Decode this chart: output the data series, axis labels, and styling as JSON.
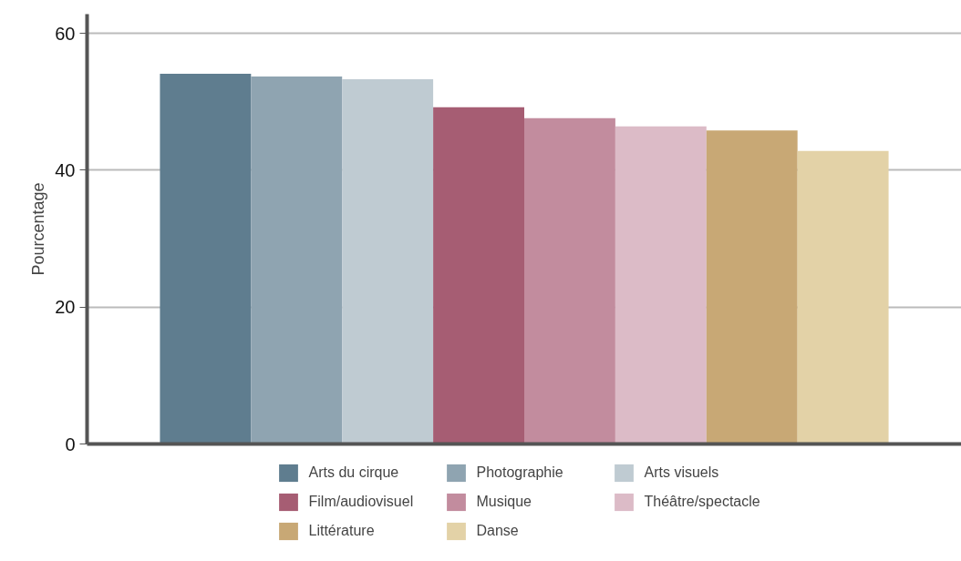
{
  "chart_data": {
    "type": "bar",
    "ylabel": "Pourcentage",
    "categories": [
      null
    ],
    "series": [
      {
        "name": "Arts du cirque",
        "color": "#5f7d8f",
        "values": [
          54.1
        ]
      },
      {
        "name": "Photographie",
        "color": "#8fa4b1",
        "values": [
          53.7
        ]
      },
      {
        "name": "Arts visuels",
        "color": "#bfcbd2",
        "values": [
          53.3
        ]
      },
      {
        "name": "Film/audiovisuel",
        "color": "#a65d73",
        "values": [
          49.2
        ]
      },
      {
        "name": "Musique",
        "color": "#c28c9e",
        "values": [
          47.6
        ]
      },
      {
        "name": "Théâtre/spectacle",
        "color": "#dcbbc7",
        "values": [
          46.4
        ]
      },
      {
        "name": "Littérature",
        "color": "#c8a875",
        "values": [
          45.8
        ]
      },
      {
        "name": "Danse",
        "color": "#e3d2a7",
        "values": [
          42.8
        ]
      }
    ],
    "ylim": [
      0,
      62.8
    ],
    "yticks": [
      0,
      20,
      40,
      60
    ],
    "grid": "y",
    "legend": "bottom"
  }
}
